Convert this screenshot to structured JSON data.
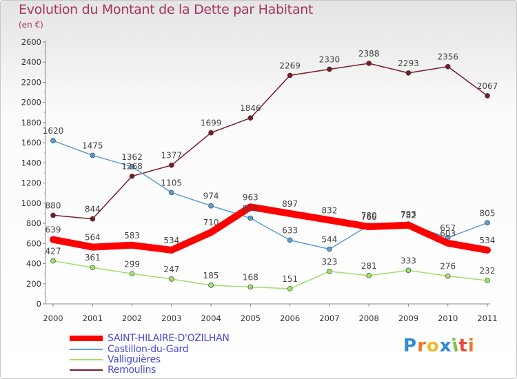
{
  "header": {
    "title": "Evolution du Montant de la Dette par Habitant",
    "unit": "(en €)"
  },
  "logo": {
    "text": "Proxiti",
    "colors": [
      "#2f8bd6",
      "#e8792c",
      "#f2b92a",
      "#2f8bd6",
      "#7cc243",
      "#e84b3a",
      "#e8792c"
    ]
  },
  "chart_data": {
    "type": "line",
    "title": "Evolution du Montant de la Dette par Habitant",
    "ylabel": "(en €)",
    "xlabel": "",
    "x": [
      "2000",
      "2001",
      "2002",
      "2003",
      "2004",
      "2005",
      "2006",
      "2007",
      "2008",
      "2009",
      "2010",
      "2011"
    ],
    "ylim": [
      0,
      2600
    ],
    "yticks": [
      0,
      200,
      400,
      600,
      800,
      1000,
      1200,
      1400,
      1600,
      1800,
      2000,
      2200,
      2400,
      2600
    ],
    "grid": false,
    "legend_position": "bottom-left",
    "series": [
      {
        "name": "SAINT-HILAIRE-D'OZILHAN",
        "color": "#ff0000",
        "values": [
          639,
          564,
          583,
          534,
          710,
          963,
          897,
          832,
          766,
          782,
          603,
          534
        ]
      },
      {
        "name": "Castillon-du-Gard",
        "color": "#5b9ed6",
        "values": [
          1620,
          1475,
          1362,
          1105,
          974,
          851,
          633,
          544,
          780,
          793,
          657,
          805
        ]
      },
      {
        "name": "Valliguières",
        "color": "#9ee06b",
        "values": [
          427,
          361,
          299,
          247,
          185,
          168,
          151,
          323,
          281,
          333,
          276,
          232
        ]
      },
      {
        "name": "Remoulins",
        "color": "#7a1c28",
        "values": [
          880,
          844,
          1268,
          1377,
          1699,
          1846,
          2269,
          2330,
          2388,
          2293,
          2356,
          2067
        ]
      }
    ],
    "data_labels": [
      [
        "639",
        "564",
        "583",
        "534",
        "710",
        "963",
        "897",
        "832",
        "766",
        "782",
        "603",
        "534"
      ],
      [
        "1620",
        "1475",
        "1362",
        "1105",
        "974",
        "851",
        "633",
        "544",
        "780",
        "793",
        "657",
        "805"
      ],
      [
        "427",
        "361",
        "299",
        "247",
        "185",
        "168",
        "151",
        "323",
        "281",
        "333",
        "276",
        "232"
      ],
      [
        "880",
        "844",
        "1268",
        "1377",
        "1699",
        "1846",
        "2269",
        "2330",
        "2388",
        "2293",
        "2356",
        "2067"
      ]
    ]
  }
}
